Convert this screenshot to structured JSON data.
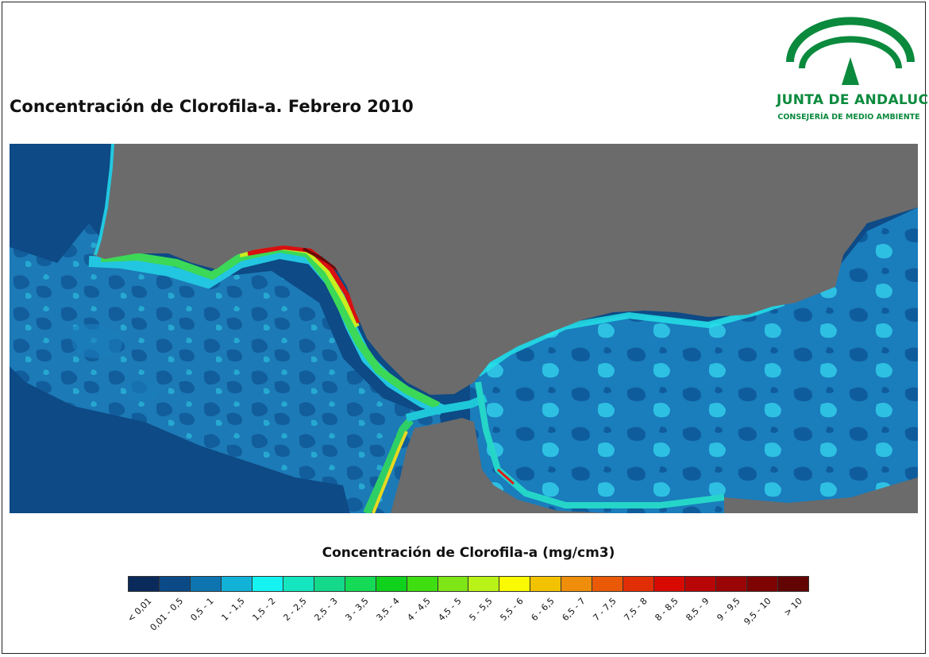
{
  "title": "Concentración de Clorofila-a. Febrero 2010",
  "logo": {
    "name": "JUNTA DE ANDALUCIA",
    "subtitle": "CONSEJERÍA DE MEDIO AMBIENTE",
    "color": "#0b8a3d"
  },
  "map": {
    "colors": {
      "land": "#6b6b6b",
      "ocean_deep": "#0d4a86",
      "ocean_mid": "#1a7fba",
      "ocean_light": "#22b8dd",
      "coastal": "#2ee6c0",
      "green": "#3fd84a",
      "yellow": "#f4e81a",
      "orange": "#f08a1a",
      "red": "#d61010",
      "dark_red": "#6a0a0a"
    }
  },
  "legend": {
    "title": "Concentración de Clorofila-a (mg/cm3)",
    "classes": [
      {
        "label": "< 0,01",
        "color": "#0a2a5c"
      },
      {
        "label": "0,01 - 0,5",
        "color": "#0c4a87"
      },
      {
        "label": "0,5 - 1",
        "color": "#0d74b0"
      },
      {
        "label": "1 - 1,5",
        "color": "#12b2d8"
      },
      {
        "label": "1,5 - 2",
        "color": "#14f2f2"
      },
      {
        "label": "2 - 2,5",
        "color": "#14e6c0"
      },
      {
        "label": "2,5 - 3",
        "color": "#14d88a"
      },
      {
        "label": "3 - 3,5",
        "color": "#14da56"
      },
      {
        "label": "3,5 - 4",
        "color": "#10d21c"
      },
      {
        "label": "4 - 4,5",
        "color": "#3ede10"
      },
      {
        "label": "4,5 - 5",
        "color": "#7ee616"
      },
      {
        "label": "5 - 5,5",
        "color": "#b8f216"
      },
      {
        "label": "5,5 - 6",
        "color": "#fafa00"
      },
      {
        "label": "6 - 6,5",
        "color": "#f2c200"
      },
      {
        "label": "6,5 - 7",
        "color": "#ee8e0a"
      },
      {
        "label": "7 - 7,5",
        "color": "#ea5a06"
      },
      {
        "label": "7,5 - 8",
        "color": "#e22e06"
      },
      {
        "label": "8 - 8,5",
        "color": "#d80a00"
      },
      {
        "label": "8,5 - 9",
        "color": "#b80606"
      },
      {
        "label": "9 - 9,5",
        "color": "#9a0606"
      },
      {
        "label": "9,5 - 10",
        "color": "#7e0404"
      },
      {
        "label": "> 10",
        "color": "#620404"
      }
    ]
  }
}
